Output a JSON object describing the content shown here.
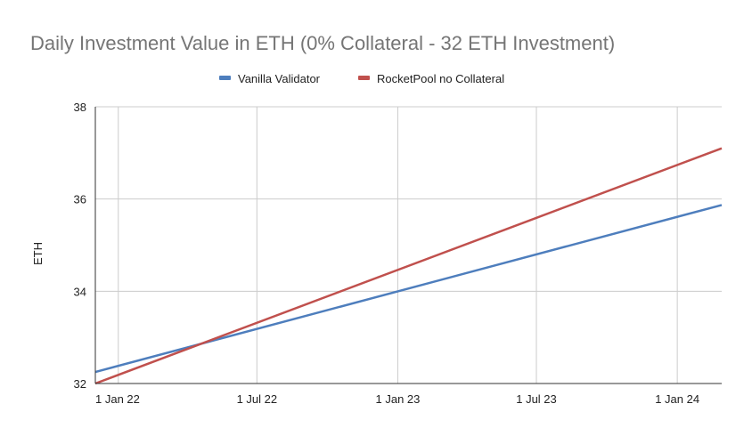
{
  "chart_data": {
    "type": "line",
    "title": "Daily Investment Value in ETH (0% Collateral - 32 ETH Investment)",
    "xlabel": "",
    "ylabel": "ETH",
    "x_unit": "days since 1 Jan 22",
    "xlim": [
      -30,
      788
    ],
    "ylim": [
      32,
      38
    ],
    "yticks": [
      32,
      34,
      36,
      38
    ],
    "xticks": [
      {
        "x": 0,
        "label": "1 Jan 22"
      },
      {
        "x": 181,
        "label": "1 Jul 22"
      },
      {
        "x": 365,
        "label": "1 Jan 23"
      },
      {
        "x": 546,
        "label": "1 Jul 23"
      },
      {
        "x": 730,
        "label": "1 Jan 24"
      }
    ],
    "grid": true,
    "legend_position": "top",
    "series": [
      {
        "name": "Vanilla Validator",
        "color": "#4e7ebd",
        "x": [
          -30,
          788
        ],
        "y": [
          32.25,
          35.87
        ]
      },
      {
        "name": "RocketPool no Collateral",
        "color": "#c0504d",
        "x": [
          -30,
          788
        ],
        "y": [
          32.0,
          37.1
        ]
      }
    ]
  }
}
